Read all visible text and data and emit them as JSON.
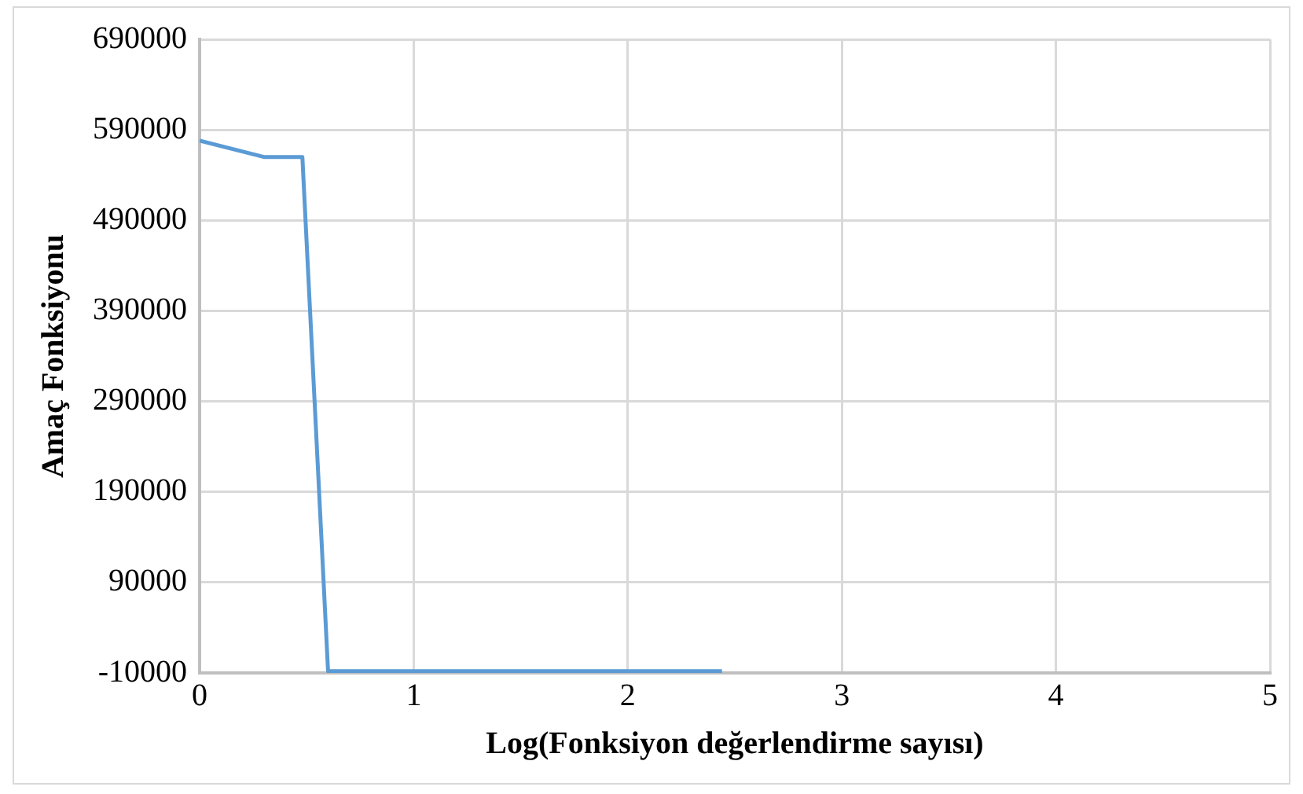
{
  "chart_data": {
    "type": "line",
    "xlabel": "Log(Fonksiyon değerlendirme sayısı)",
    "ylabel": "Amaç Fonksiyonu",
    "series": [
      {
        "color": "#5b9bd5",
        "x": [
          0,
          0.3,
          0.48,
          0.6,
          2.44
        ],
        "values": [
          578000,
          560000,
          560000,
          -8000,
          -8000
        ]
      }
    ],
    "xlim": [
      0,
      5
    ],
    "xticks": [
      0,
      1,
      2,
      3,
      4,
      5
    ],
    "ylim": [
      -10000,
      690000
    ],
    "yticks": [
      -10000,
      90000,
      190000,
      290000,
      390000,
      490000,
      590000,
      690000
    ],
    "grid": true,
    "legend": false,
    "marker": "none",
    "line_style": "solid"
  }
}
